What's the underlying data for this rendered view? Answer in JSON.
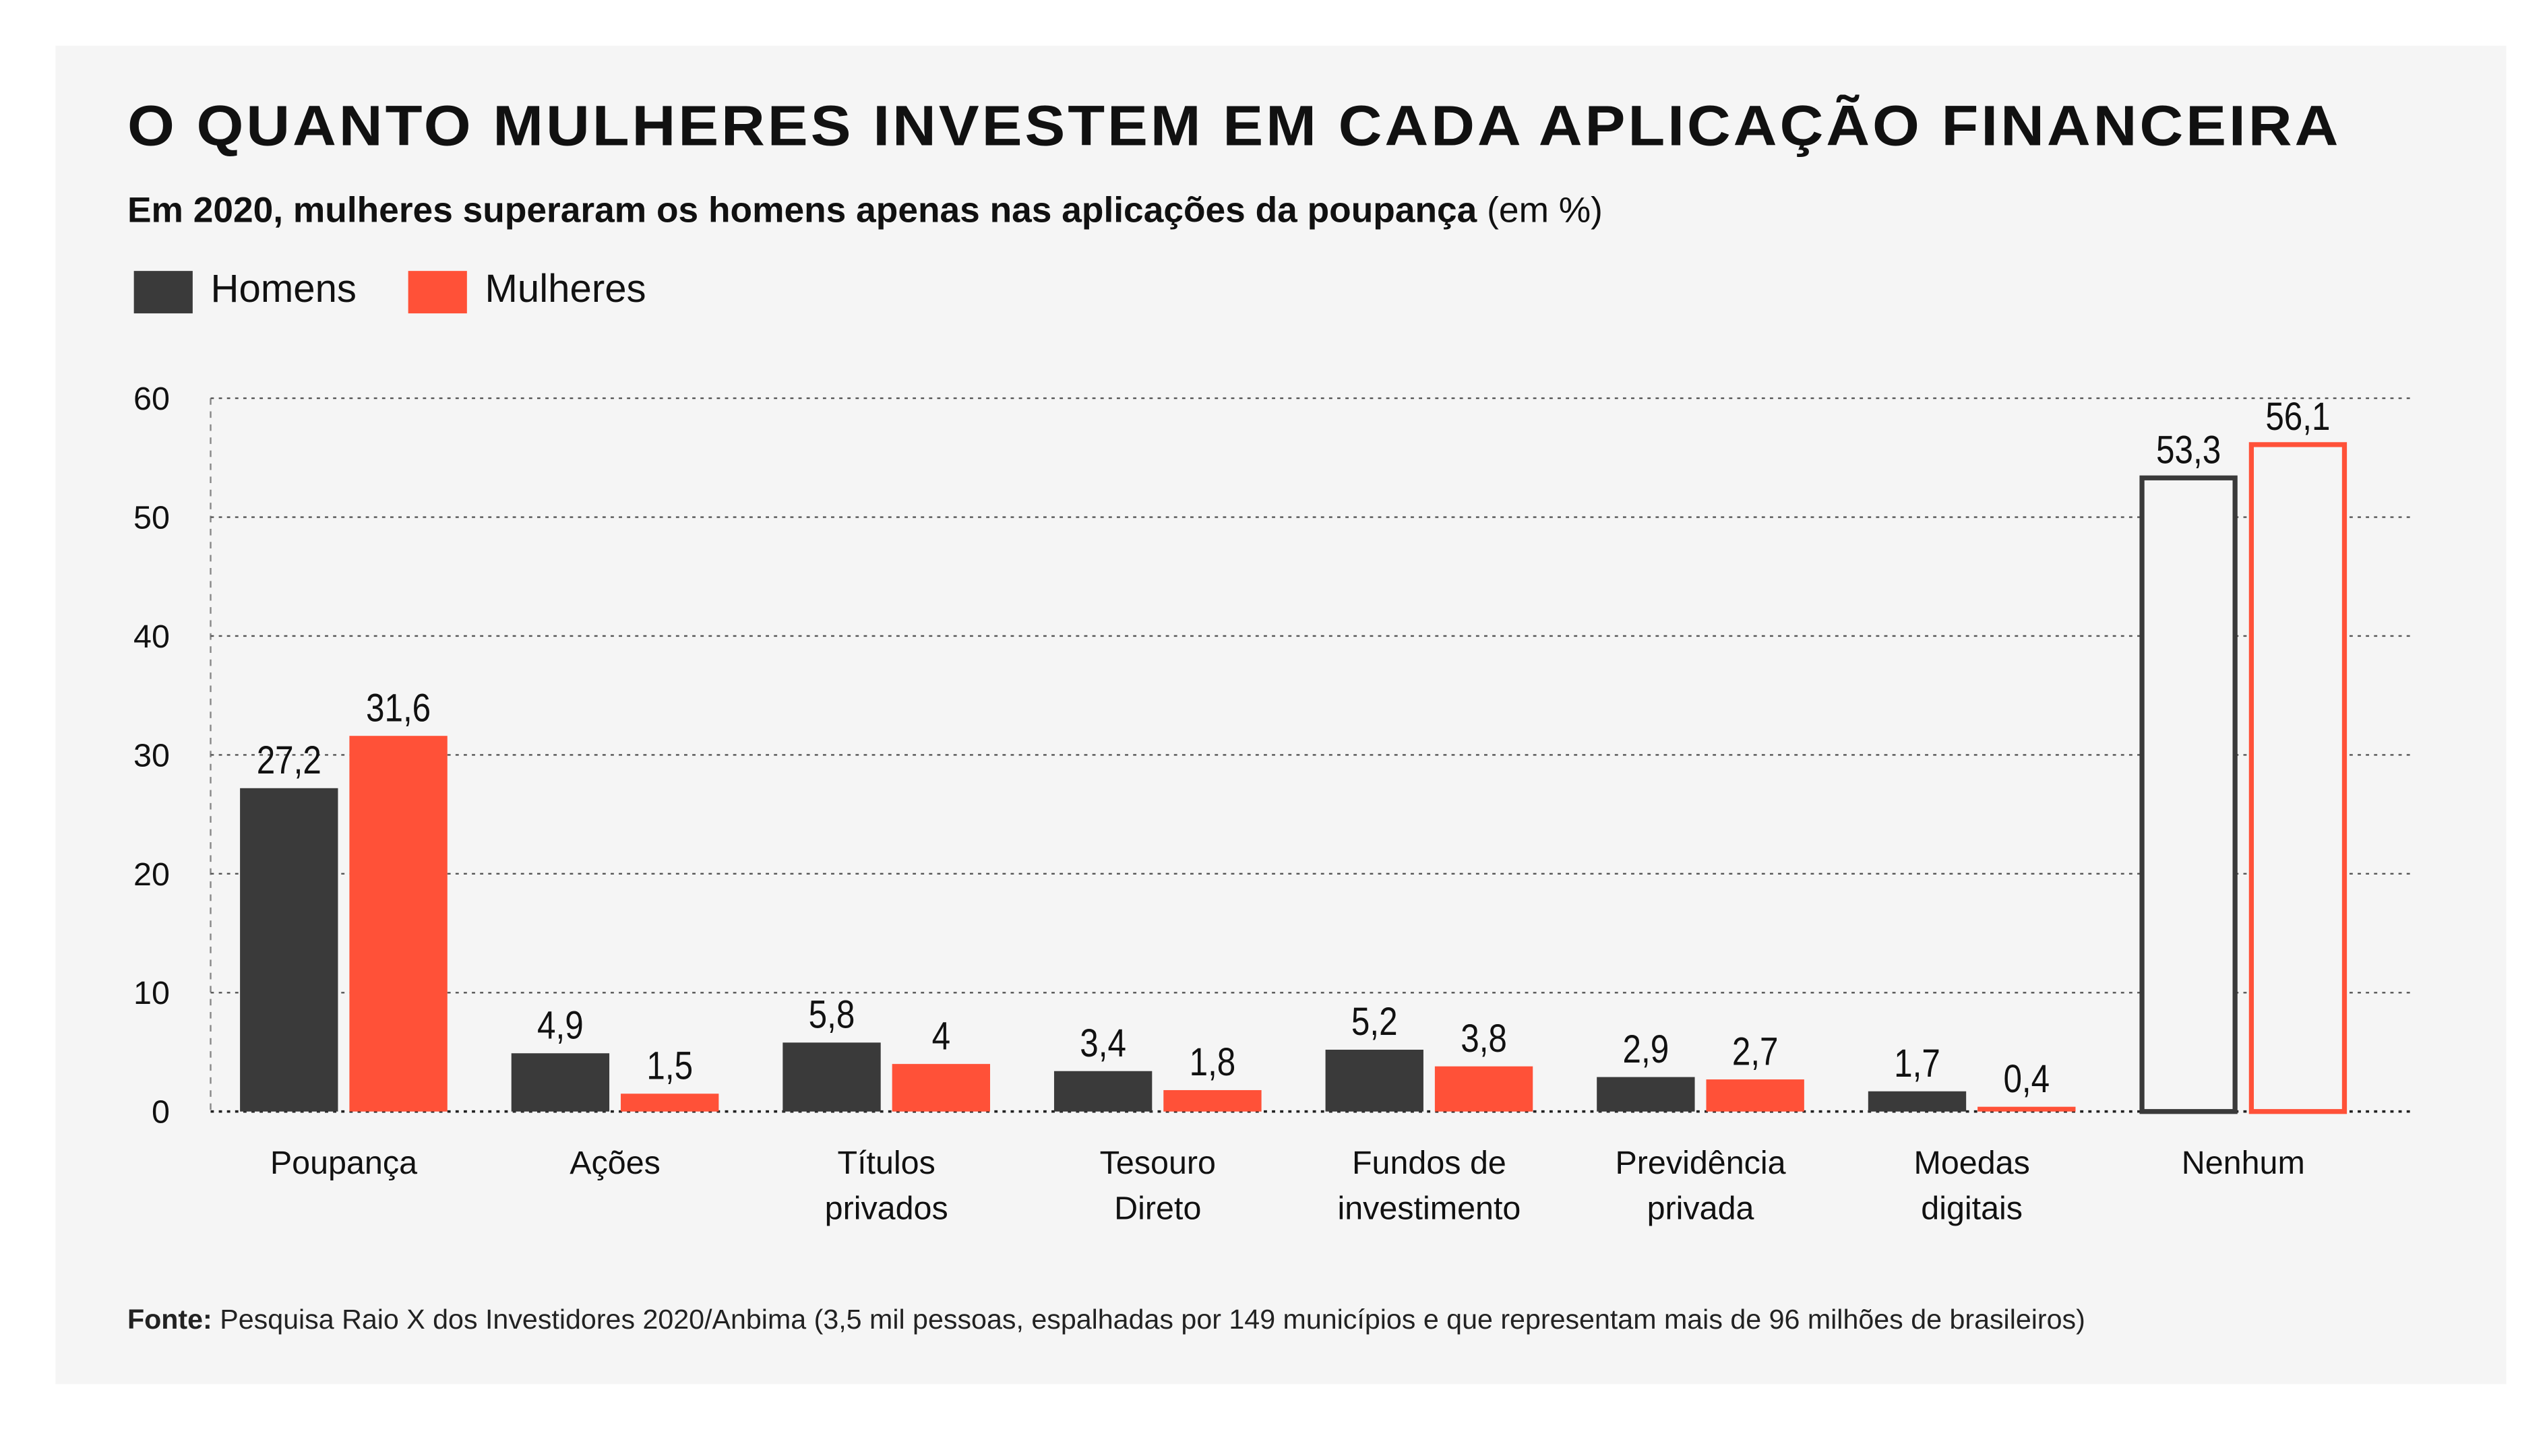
{
  "header": {
    "title": "O QUANTO MULHERES INVESTEM EM CADA APLICAÇÃO FINANCEIRA",
    "subtitle_bold": "Em 2020, mulheres superaram os homens apenas nas aplicações da poupança",
    "subtitle_unit": "(em %)"
  },
  "legend": [
    {
      "label": "Homens",
      "color": "#3a3a3a"
    },
    {
      "label": "Mulheres",
      "color": "#ff5138"
    }
  ],
  "source": {
    "label": "Fonte:",
    "text": "Pesquisa Raio X dos Investidores 2020/Anbima (3,5 mil pessoas, espalhadas por 149 municípios e que representam mais de 96 milhões de brasileiros)"
  },
  "chart_data": {
    "type": "bar",
    "title": "O QUANTO MULHERES INVESTEM EM CADA APLICAÇÃO FINANCEIRA",
    "ylim": [
      0,
      60
    ],
    "yticks": [
      0,
      10,
      20,
      30,
      40,
      50,
      60
    ],
    "grid": true,
    "legend_position": "top-left",
    "categories": [
      [
        "Poupança"
      ],
      [
        "Ações"
      ],
      [
        "Títulos",
        "privados"
      ],
      [
        "Tesouro",
        "Direto"
      ],
      [
        "Fundos de",
        "investimento"
      ],
      [
        "Previdência",
        "privada"
      ],
      [
        "Moedas",
        "digitais"
      ],
      [
        "Nenhum"
      ]
    ],
    "series": [
      {
        "name": "Homens",
        "color": "#3a3a3a",
        "values": [
          27.2,
          4.9,
          5.8,
          3.4,
          5.2,
          2.9,
          1.7,
          53.3
        ],
        "labels": [
          "27,2",
          "4,9",
          "5,8",
          "3,4",
          "5,2",
          "2,9",
          "1,7",
          "53,3"
        ]
      },
      {
        "name": "Mulheres",
        "color": "#ff5138",
        "values": [
          31.6,
          1.5,
          4,
          1.8,
          3.8,
          2.7,
          0.4,
          56.1
        ],
        "labels": [
          "31,6",
          "1,5",
          "4",
          "1,8",
          "3,8",
          "2,7",
          "0,4",
          "56,1"
        ]
      }
    ],
    "outlined_categories": [
      "Nenhum"
    ]
  }
}
